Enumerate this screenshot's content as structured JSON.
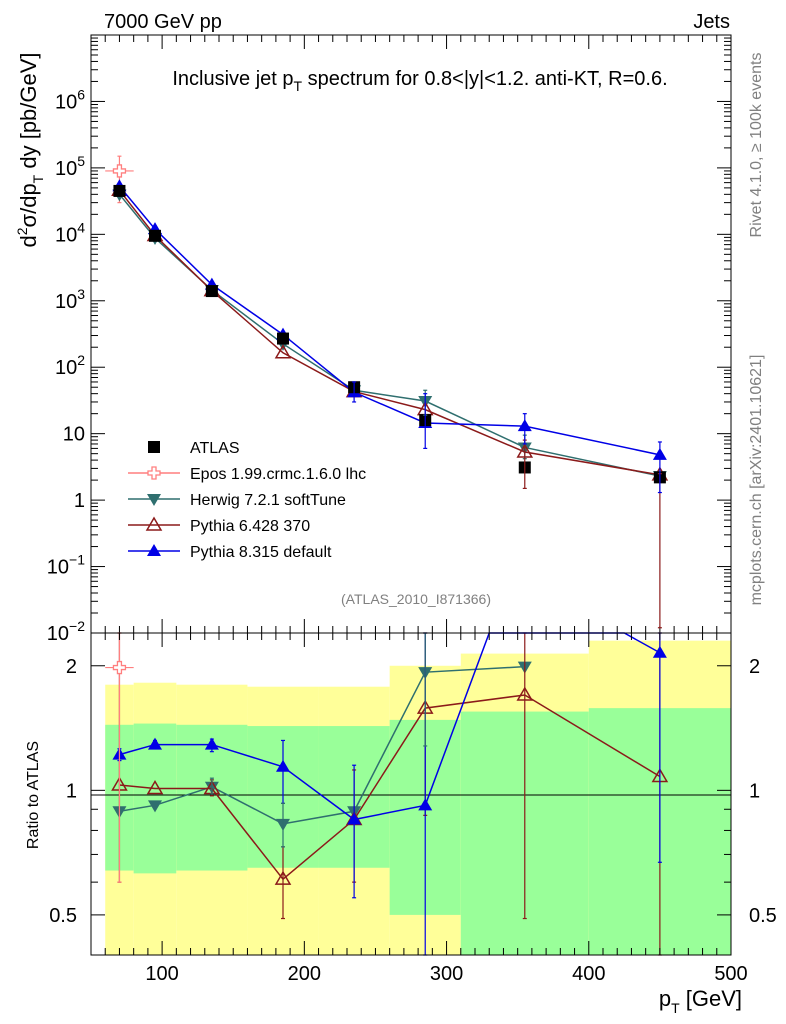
{
  "header": {
    "left": "7000 GeV pp",
    "right": "Jets"
  },
  "side": {
    "version": "Rivet 4.1.0, ≥ 100k events",
    "site": "mcplots.cern.ch [arXiv:2401.10621]"
  },
  "chart_data": [
    {
      "type": "line",
      "panel": "main",
      "title": "Inclusive jet pT spectrum for 0.8<|y|<1.2.  anti-KT, R=0.6.",
      "title_parts": {
        "pre": "Inclusive jet p",
        "sub": "T",
        "post": " spectrum for 0.8<|y|<1.2.  anti-KT, R=0.6."
      },
      "ylabel": "d²σ/dp_T dy [pb/GeV]",
      "ylabel_parts": {
        "a": "d",
        "sup2": "2",
        "b": "σ/dp",
        "subT": "T",
        "c": " dy [pb/GeV]"
      },
      "yscale": "log",
      "ylim": [
        0.01,
        10000000
      ],
      "y_ticks": [
        "10⁻²",
        "10⁻¹",
        "1",
        "10",
        "10²",
        "10³",
        "10⁴",
        "10⁵",
        "10⁶"
      ],
      "analysis_label": "(ATLAS_2010_I871366)",
      "legend_position": "lower-left",
      "series": [
        {
          "name": "ATLAS",
          "color": "#000000",
          "marker": "square",
          "x": [
            70,
            95,
            135,
            185,
            235,
            285,
            355,
            450
          ],
          "y": [
            45000,
            9500,
            1400,
            270,
            50,
            16,
            3.1,
            2.2
          ]
        },
        {
          "name": "Epos 1.99.crmc.1.6.0 lhc",
          "color": "#ff7f7f",
          "marker": "open-cross",
          "x": [
            70
          ],
          "y": [
            90000
          ],
          "yerr_lo": [
            30000
          ],
          "yerr_hi": [
            150000
          ],
          "xerr": [
            60,
            80
          ]
        },
        {
          "name": "Herwig 7.2.1 softTune",
          "color": "#2f6f6f",
          "marker": "triangle-down",
          "x": [
            70,
            95,
            135,
            185,
            235,
            285,
            355,
            450
          ],
          "y": [
            40000,
            8800,
            1450,
            225,
            45,
            31,
            6.2,
            2.3
          ]
        },
        {
          "name": "Pythia 6.428 370",
          "color": "#8b1a1a",
          "marker": "open-triangle-up",
          "x": [
            70,
            95,
            135,
            185,
            235,
            285,
            355,
            450
          ],
          "y": [
            46000,
            9600,
            1420,
            165,
            43,
            23,
            5.3,
            2.4
          ]
        },
        {
          "name": "Pythia 8.315 default",
          "color": "#0000e6",
          "marker": "triangle-up",
          "x": [
            70,
            95,
            135,
            185,
            235,
            285,
            355,
            450
          ],
          "y": [
            53000,
            12000,
            1750,
            310,
            42,
            14.5,
            13,
            4.8
          ]
        }
      ]
    },
    {
      "type": "line",
      "panel": "ratio",
      "ylabel": "Ratio to ATLAS",
      "xlabel": "p_T [GeV]",
      "xlabel_parts": {
        "a": "p",
        "sub": "T",
        "b": " [GeV]"
      },
      "yscale": "log",
      "ylim": [
        0.4,
        2.4
      ],
      "xlim": [
        50,
        500
      ],
      "x_ticks": [
        "100",
        "200",
        "300",
        "400",
        "500"
      ],
      "y_ticks": [
        "0.5",
        "1",
        "2"
      ],
      "bands": {
        "edges": [
          60,
          80,
          110,
          160,
          210,
          260,
          310,
          400,
          500
        ],
        "outer_lo": [
          0.35,
          0.35,
          0.35,
          0.35,
          0.35,
          0.35,
          0.35,
          0.35
        ],
        "outer_hi": [
          1.8,
          1.82,
          1.8,
          1.78,
          1.78,
          2.0,
          2.14,
          2.3
        ],
        "inner_lo": [
          0.64,
          0.63,
          0.64,
          0.65,
          0.65,
          0.5,
          0.35,
          0.35
        ],
        "inner_hi": [
          1.44,
          1.45,
          1.44,
          1.43,
          1.43,
          1.48,
          1.55,
          1.58
        ],
        "outer_color": "#ffff99",
        "inner_color": "#99ff99"
      },
      "series": [
        {
          "name": "Epos 1.99.crmc.1.6.0 lhc",
          "color": "#ff7f7f",
          "marker": "open-cross",
          "x": [
            70
          ],
          "y": [
            1.98
          ],
          "yerr_lo": [
            0.6
          ],
          "yerr_hi": [
            2.4
          ]
        },
        {
          "name": "Herwig 7.2.1 softTune",
          "color": "#2f6f6f",
          "marker": "triangle-down",
          "x": [
            70,
            95,
            135,
            185,
            235,
            285,
            355
          ],
          "y": [
            0.89,
            0.92,
            1.02,
            0.83,
            0.89,
            1.93,
            1.99
          ]
        },
        {
          "name": "Pythia 6.428 370",
          "color": "#8b1a1a",
          "marker": "open-triangle-up",
          "x": [
            70,
            95,
            135,
            185,
            235,
            285,
            355,
            450
          ],
          "y": [
            1.03,
            1.01,
            1.01,
            0.61,
            0.85,
            1.58,
            1.7,
            1.08
          ],
          "yerr_lo": [
            0.6,
            null,
            0.97,
            0.49,
            0.6,
            0.87,
            0.49,
            0.35
          ],
          "yerr_hi": [
            2.4,
            null,
            1.06,
            0.73,
            1.12,
            2.4,
            2.4,
            2.4
          ]
        },
        {
          "name": "Pythia 8.315 default",
          "color": "#0000e6",
          "marker": "triangle-up",
          "x": [
            70,
            95,
            135,
            185,
            235,
            285,
            330,
            425,
            450
          ],
          "y": [
            1.22,
            1.29,
            1.29,
            1.14,
            0.85,
            0.92,
            2.4,
            2.4,
            2.15
          ],
          "yerr_lo": [
            1.18,
            1.26,
            1.24,
            0.93,
            0.55,
            0.35,
            null,
            null,
            0.67
          ],
          "yerr_hi": [
            1.26,
            1.32,
            1.33,
            1.32,
            1.15,
            2.4,
            null,
            null,
            2.4
          ]
        }
      ]
    }
  ]
}
